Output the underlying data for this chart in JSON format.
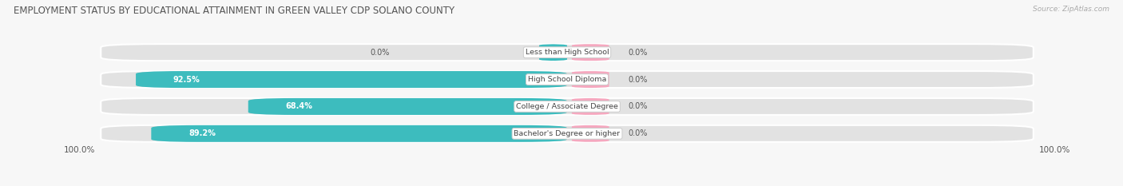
{
  "title": "EMPLOYMENT STATUS BY EDUCATIONAL ATTAINMENT IN GREEN VALLEY CDP SOLANO COUNTY",
  "source": "Source: ZipAtlas.com",
  "categories": [
    "Less than High School",
    "High School Diploma",
    "College / Associate Degree",
    "Bachelor's Degree or higher"
  ],
  "labor_force_pct": [
    0.0,
    92.5,
    68.4,
    89.2
  ],
  "unemployed_pct": [
    0.0,
    0.0,
    0.0,
    0.0
  ],
  "left_axis_label": "100.0%",
  "right_axis_label": "100.0%",
  "color_labor": "#3dbcbe",
  "color_unemployed": "#f5a8bf",
  "color_bar_bg": "#e2e2e2",
  "color_bg": "#f7f7f7",
  "title_fontsize": 8.5,
  "source_fontsize": 6.5,
  "bar_height": 0.62,
  "figsize": [
    14.06,
    2.33
  ],
  "dpi": 100
}
